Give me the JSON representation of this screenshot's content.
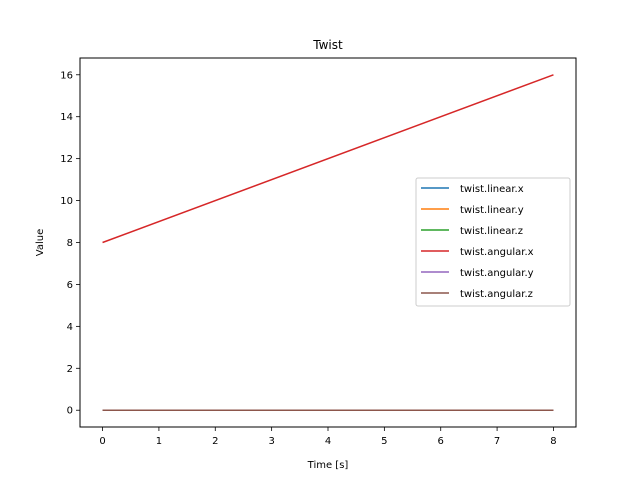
{
  "chart_data": {
    "type": "line",
    "title": "Twist",
    "xlabel": "Time [s]",
    "ylabel": "Value",
    "xlim": [
      -0.4,
      8.4
    ],
    "ylim": [
      -0.8,
      16.8
    ],
    "xticks": [
      0,
      1,
      2,
      3,
      4,
      5,
      6,
      7,
      8
    ],
    "yticks": [
      0,
      2,
      4,
      6,
      8,
      10,
      12,
      14,
      16
    ],
    "grid": false,
    "legend_position": "center-right",
    "series": [
      {
        "name": "twist.linear.x",
        "color": "#1f77b4",
        "x": [
          0,
          8
        ],
        "y": [
          0,
          0
        ]
      },
      {
        "name": "twist.linear.y",
        "color": "#ff7f0e",
        "x": [
          0,
          8
        ],
        "y": [
          0,
          0
        ]
      },
      {
        "name": "twist.linear.z",
        "color": "#2ca02c",
        "x": [
          0,
          8
        ],
        "y": [
          0,
          0
        ]
      },
      {
        "name": "twist.angular.x",
        "color": "#d62728",
        "x": [
          0,
          8
        ],
        "y": [
          8,
          16
        ]
      },
      {
        "name": "twist.angular.y",
        "color": "#9467bd",
        "x": [
          0,
          8
        ],
        "y": [
          0,
          0
        ]
      },
      {
        "name": "twist.angular.z",
        "color": "#8c564b",
        "x": [
          0,
          8
        ],
        "y": [
          0,
          0
        ]
      }
    ]
  }
}
